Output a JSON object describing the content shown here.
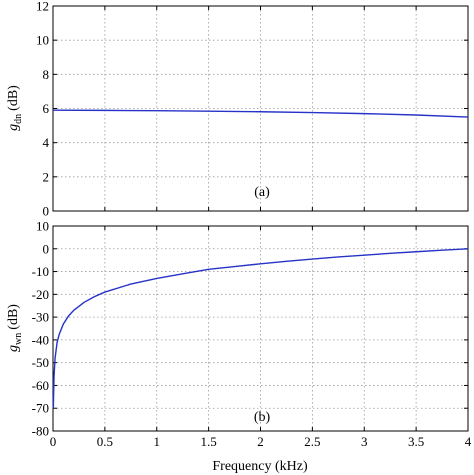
{
  "chart_data": [
    {
      "type": "line",
      "panel_label": "(a)",
      "ylabel": {
        "symbol": "g",
        "subscript": "dn",
        "unit": "(dB)"
      },
      "xlim": [
        0,
        4
      ],
      "ylim": [
        0,
        12
      ],
      "xticks": [
        0,
        0.5,
        1,
        1.5,
        2,
        2.5,
        3,
        3.5,
        4
      ],
      "yticks": [
        0,
        2,
        4,
        6,
        8,
        10,
        12
      ],
      "ytick_labels": [
        "0",
        "2",
        "4",
        "6",
        "8",
        "10",
        "12"
      ],
      "grid": true,
      "color": "#2633c8",
      "series": [
        {
          "x": [
            0,
            0.5,
            1,
            1.5,
            2,
            2.5,
            3,
            3.5,
            4
          ],
          "values": [
            5.9,
            5.89,
            5.87,
            5.84,
            5.81,
            5.76,
            5.7,
            5.62,
            5.5
          ]
        }
      ]
    },
    {
      "type": "line",
      "panel_label": "(b)",
      "ylabel": {
        "symbol": "g",
        "subscript": "wn",
        "unit": "(dB)"
      },
      "xlabel": "Frequency (kHz)",
      "xlim": [
        0,
        4
      ],
      "ylim": [
        -80,
        10
      ],
      "xticks": [
        0,
        0.5,
        1,
        1.5,
        2,
        2.5,
        3,
        3.5,
        4
      ],
      "xtick_labels": [
        "0",
        "0.5",
        "1",
        "1.5",
        "2",
        "2.5",
        "3",
        "3.5",
        "4"
      ],
      "yticks": [
        -80,
        -70,
        -60,
        -50,
        -40,
        -30,
        -20,
        -10,
        0,
        10
      ],
      "ytick_labels": [
        "-80",
        "-70",
        "-60",
        "-50",
        "-40",
        "-30",
        "-20",
        "-10",
        "0",
        "10"
      ],
      "grid": true,
      "color": "#2633c8",
      "series": [
        {
          "x": [
            0.003,
            0.01,
            0.02,
            0.04,
            0.06,
            0.1,
            0.15,
            0.2,
            0.3,
            0.4,
            0.5,
            0.75,
            1,
            1.25,
            1.5,
            1.75,
            2,
            2.25,
            2.5,
            2.75,
            3,
            3.25,
            3.5,
            3.75,
            4
          ],
          "values": [
            -70,
            -56,
            -48,
            -41,
            -37.5,
            -33,
            -29.5,
            -27,
            -23.5,
            -21,
            -19,
            -15.5,
            -13,
            -11,
            -9,
            -7.8,
            -6.6,
            -5.5,
            -4.5,
            -3.6,
            -2.8,
            -2,
            -1.3,
            -0.6,
            0
          ]
        }
      ]
    }
  ]
}
